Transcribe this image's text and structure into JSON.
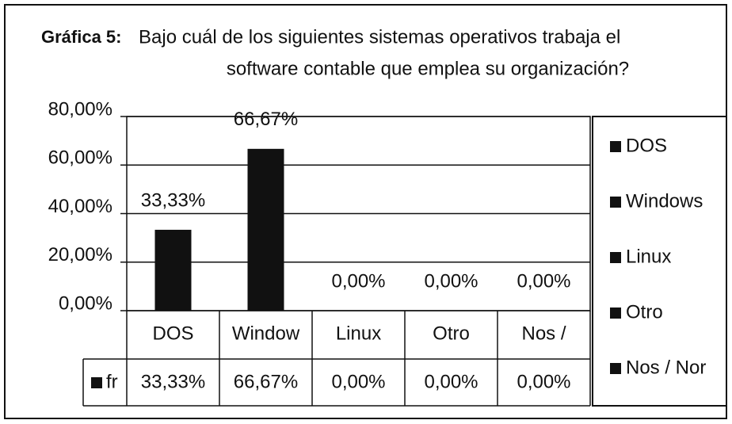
{
  "chart_data": {
    "type": "bar",
    "chart_label": "Gráfica 5:",
    "title_lines": [
      "Bajo cuál de los siguientes sistemas operativos trabaja el",
      "software contable que emplea su organización?"
    ],
    "categories": [
      "DOS",
      "Window",
      "Linux",
      "Otro",
      "Nos /"
    ],
    "series": [
      {
        "name": "fr",
        "color": "#111111",
        "values": [
          33.33,
          66.67,
          0,
          0,
          0
        ],
        "value_labels": [
          "33,33%",
          "66,67%",
          "0,00%",
          "0,00%",
          "0,00%"
        ]
      }
    ],
    "legend_labels": [
      "DOS",
      "Windows",
      "Linux",
      "Otro",
      "Nos / Nor"
    ],
    "ylim": [
      0,
      80
    ],
    "yticks": [
      {
        "value": 0,
        "label": "0,00%"
      },
      {
        "value": 20,
        "label": "20,00%"
      },
      {
        "value": 40,
        "label": "40,00%"
      },
      {
        "value": 60,
        "label": "60,00%"
      },
      {
        "value": 80,
        "label": "80,00%"
      }
    ],
    "grid": true,
    "legend": "right"
  }
}
